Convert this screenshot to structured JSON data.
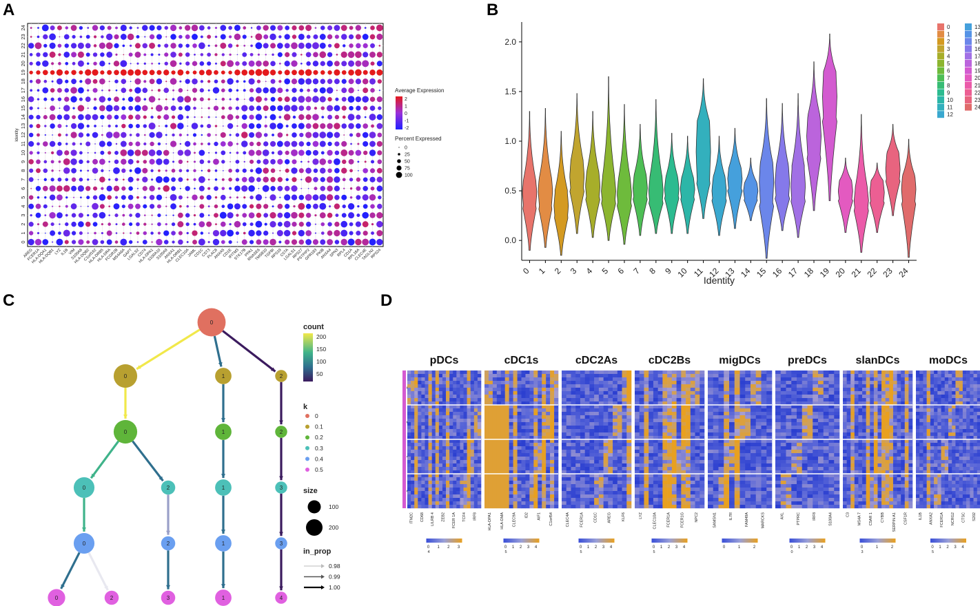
{
  "figure": {
    "panels": [
      {
        "label": "A"
      },
      {
        "label": "B"
      },
      {
        "label": "C"
      },
      {
        "label": "D"
      }
    ]
  },
  "chart_data": [
    {
      "panel": "A",
      "type": "scatter",
      "subtype": "dotplot",
      "ylabel": "Identity",
      "identities": [
        "0",
        "1",
        "2",
        "3",
        "4",
        "5",
        "6",
        "7",
        "8",
        "9",
        "10",
        "11",
        "12",
        "13",
        "14",
        "15",
        "16",
        "17",
        "18",
        "19",
        "20",
        "21",
        "22",
        "23",
        "24"
      ],
      "genes": [
        "AREG",
        "FCER1A",
        "HLA-DQA1",
        "HLA-DQB1",
        "LYZ",
        "IL1B",
        "VIM",
        "S100A8",
        "HLA-DQB2",
        "C1orf162",
        "HLA-DRB5",
        "HLA-DRA",
        "FCGR2B",
        "MS4A6A",
        "GAPT",
        "LGALS2",
        "CD74",
        "HLA-DPA1",
        "S100A10",
        "S100A9",
        "ANXA1",
        "HLA-DRB1",
        "CLEC10A",
        "JAML",
        "CD1C",
        "CST3",
        "PLAC8",
        "ANXA5",
        "CD1E",
        "IFITM3",
        "STK17B",
        "PPA1",
        "RNASE6",
        "TMSB10",
        "TGFBI",
        "RPS19",
        "C5TA",
        "LGALS1",
        "RPS27",
        "PSTPIP2",
        "GPR183",
        "PKIB",
        "ANXA4",
        "SPN3",
        "RPL4",
        "CD1A",
        "RPL18A",
        "CLEC4E",
        "TAGLN2",
        "RPS24"
      ],
      "special_row": {
        "identity": "19",
        "color": "#e41a1c"
      },
      "legend": {
        "color_title": "Average Expression",
        "color_ticks": [
          "2",
          "1",
          "0",
          "-1",
          "-2"
        ],
        "color_range": [
          -2,
          2
        ],
        "size_title": "Percent Expressed",
        "size_ticks": [
          "0",
          "25",
          "50",
          "75",
          "100"
        ],
        "colors": {
          "high": "#e41a1c",
          "mid": "#9b30d9",
          "low": "#2020ff"
        }
      }
    },
    {
      "panel": "B",
      "type": "violin",
      "xlabel": "Identity",
      "categories": [
        "0",
        "1",
        "2",
        "3",
        "4",
        "5",
        "6",
        "7",
        "8",
        "9",
        "10",
        "11",
        "12",
        "13",
        "14",
        "15",
        "16",
        "17",
        "18",
        "19",
        "20",
        "21",
        "22",
        "23",
        "24"
      ],
      "ylim": [
        -0.2,
        2.2
      ],
      "yticks": [
        "0.0",
        "0.5",
        "1.0",
        "1.5",
        "2.0"
      ],
      "violins": [
        {
          "min": -0.1,
          "q1": 0.35,
          "median": 0.48,
          "q3": 0.6,
          "max": 1.3
        },
        {
          "min": -0.07,
          "q1": 0.35,
          "median": 0.5,
          "q3": 0.62,
          "max": 1.33
        },
        {
          "min": -0.15,
          "q1": 0.25,
          "median": 0.35,
          "q3": 0.5,
          "max": 1.1
        },
        {
          "min": 0.07,
          "q1": 0.5,
          "median": 0.65,
          "q3": 0.8,
          "max": 1.48
        },
        {
          "min": 0.03,
          "q1": 0.42,
          "median": 0.55,
          "q3": 0.68,
          "max": 1.3
        },
        {
          "min": 0.0,
          "q1": 0.38,
          "median": 0.5,
          "q3": 0.62,
          "max": 1.65
        },
        {
          "min": -0.04,
          "q1": 0.35,
          "median": 0.47,
          "q3": 0.6,
          "max": 1.37
        },
        {
          "min": 0.05,
          "q1": 0.42,
          "median": 0.53,
          "q3": 0.65,
          "max": 1.17
        },
        {
          "min": 0.07,
          "q1": 0.38,
          "median": 0.5,
          "q3": 0.63,
          "max": 1.42
        },
        {
          "min": 0.07,
          "q1": 0.43,
          "median": 0.52,
          "q3": 0.63,
          "max": 1.08
        },
        {
          "min": 0.07,
          "q1": 0.43,
          "median": 0.52,
          "q3": 0.62,
          "max": 1.05
        },
        {
          "min": 0.22,
          "q1": 0.6,
          "median": 0.9,
          "q3": 1.2,
          "max": 1.63
        },
        {
          "min": 0.05,
          "q1": 0.4,
          "median": 0.5,
          "q3": 0.63,
          "max": 1.05
        },
        {
          "min": 0.12,
          "q1": 0.5,
          "median": 0.62,
          "q3": 0.73,
          "max": 1.13
        },
        {
          "min": 0.2,
          "q1": 0.42,
          "median": 0.5,
          "q3": 0.58,
          "max": 0.83
        },
        {
          "min": -0.18,
          "q1": 0.35,
          "median": 0.6,
          "q3": 0.78,
          "max": 1.43
        },
        {
          "min": 0.1,
          "q1": 0.42,
          "median": 0.58,
          "q3": 0.75,
          "max": 1.38
        },
        {
          "min": 0.03,
          "q1": 0.4,
          "median": 0.55,
          "q3": 0.75,
          "max": 1.48
        },
        {
          "min": 0.3,
          "q1": 0.85,
          "median": 1.05,
          "q3": 1.25,
          "max": 1.8
        },
        {
          "min": 0.4,
          "q1": 1.2,
          "median": 1.45,
          "q3": 1.7,
          "max": 2.08
        },
        {
          "min": 0.08,
          "q1": 0.4,
          "median": 0.5,
          "q3": 0.6,
          "max": 0.83
        },
        {
          "min": -0.12,
          "q1": 0.3,
          "median": 0.4,
          "q3": 0.52,
          "max": 1.27
        },
        {
          "min": 0.08,
          "q1": 0.38,
          "median": 0.48,
          "q3": 0.6,
          "max": 0.78
        },
        {
          "min": 0.25,
          "q1": 0.6,
          "median": 0.72,
          "q3": 0.88,
          "max": 1.17
        },
        {
          "min": -0.17,
          "q1": 0.38,
          "median": 0.52,
          "q3": 0.65,
          "max": 1.02
        }
      ],
      "colors": [
        "#e8746b",
        "#e28c44",
        "#d49a21",
        "#c1a52f",
        "#a7ae2a",
        "#8cb52f",
        "#6ebb3c",
        "#4dbe55",
        "#37bc74",
        "#2cbb90",
        "#2cb6a8",
        "#33b0bd",
        "#3aa8cf",
        "#45a0dc",
        "#5593e6",
        "#6b86ea",
        "#8579ea",
        "#a170e5",
        "#bb64dc",
        "#d35bd0",
        "#e35ac0",
        "#eb5ba9",
        "#ec5f93",
        "#e8647f",
        "#e06b6b"
      ],
      "legend": [
        "0",
        "1",
        "2",
        "3",
        "4",
        "5",
        "6",
        "7",
        "8",
        "9",
        "10",
        "11",
        "12",
        "13",
        "14",
        "15",
        "16",
        "17",
        "18",
        "19",
        "20",
        "21",
        "22",
        "23",
        "24"
      ]
    },
    {
      "panel": "C",
      "type": "tree",
      "subtype": "clustree",
      "nodes": [
        {
          "id": "r0",
          "label": "0",
          "k": "0",
          "size": 230
        },
        {
          "id": "a0",
          "label": "0",
          "k": "0.1",
          "size": 150
        },
        {
          "id": "a1",
          "label": "1",
          "k": "0.1",
          "size": 60
        },
        {
          "id": "a2",
          "label": "2",
          "k": "0.1",
          "size": 25
        },
        {
          "id": "b0",
          "label": "0",
          "k": "0.2",
          "size": 150
        },
        {
          "id": "b1",
          "label": "1",
          "k": "0.2",
          "size": 60
        },
        {
          "id": "b2",
          "label": "2",
          "k": "0.2",
          "size": 25
        },
        {
          "id": "c0",
          "label": "0",
          "k": "0.3",
          "size": 110
        },
        {
          "id": "c2",
          "label": "2",
          "k": "0.3",
          "size": 40
        },
        {
          "id": "c1",
          "label": "1",
          "k": "0.3",
          "size": 60
        },
        {
          "id": "c3",
          "label": "3",
          "k": "0.3",
          "size": 25
        },
        {
          "id": "d0",
          "label": "0",
          "k": "0.4",
          "size": 110
        },
        {
          "id": "d2",
          "label": "2",
          "k": "0.4",
          "size": 40
        },
        {
          "id": "d1",
          "label": "1",
          "k": "0.4",
          "size": 60
        },
        {
          "id": "d3",
          "label": "3",
          "k": "0.4",
          "size": 25
        },
        {
          "id": "e0",
          "label": "0",
          "k": "0.5",
          "size": 70
        },
        {
          "id": "e2",
          "label": "2",
          "k": "0.5",
          "size": 40
        },
        {
          "id": "e3",
          "label": "3",
          "k": "0.5",
          "size": 40
        },
        {
          "id": "e1",
          "label": "1",
          "k": "0.5",
          "size": 60
        },
        {
          "id": "e4",
          "label": "4",
          "k": "0.5",
          "size": 25
        }
      ],
      "edges": [
        {
          "from": "r0",
          "to": "a0",
          "count": 200,
          "in_prop": 1.0
        },
        {
          "from": "r0",
          "to": "a1",
          "count": 100,
          "in_prop": 1.0
        },
        {
          "from": "r0",
          "to": "a2",
          "count": 40,
          "in_prop": 1.0
        },
        {
          "from": "a0",
          "to": "b0",
          "count": 200,
          "in_prop": 0.99
        },
        {
          "from": "a1",
          "to": "b1",
          "count": 100,
          "in_prop": 1.0
        },
        {
          "from": "a2",
          "to": "b2",
          "count": 40,
          "in_prop": 1.0
        },
        {
          "from": "b0",
          "to": "c0",
          "count": 150,
          "in_prop": 1.0
        },
        {
          "from": "b0",
          "to": "c2",
          "count": 100,
          "in_prop": 1.0
        },
        {
          "from": "b1",
          "to": "c1",
          "count": 100,
          "in_prop": 1.0
        },
        {
          "from": "b2",
          "to": "c3",
          "count": 40,
          "in_prop": 1.0
        },
        {
          "from": "c0",
          "to": "d0",
          "count": 150,
          "in_prop": 0.99
        },
        {
          "from": "c2",
          "to": "d2",
          "count": 120,
          "in_prop": 0.98
        },
        {
          "from": "c1",
          "to": "d1",
          "count": 100,
          "in_prop": 1.0
        },
        {
          "from": "c3",
          "to": "d3",
          "count": 40,
          "in_prop": 1.0
        },
        {
          "from": "d0",
          "to": "e0",
          "count": 100,
          "in_prop": 1.0
        },
        {
          "from": "d0",
          "to": "e2",
          "count": 200,
          "in_prop": 0.98
        },
        {
          "from": "d2",
          "to": "e3",
          "count": 100,
          "in_prop": 1.0
        },
        {
          "from": "d1",
          "to": "e1",
          "count": 100,
          "in_prop": 1.0
        },
        {
          "from": "d3",
          "to": "e4",
          "count": 40,
          "in_prop": 1.0
        }
      ],
      "legend": {
        "count_title": "count",
        "count_ticks": [
          "200",
          "150",
          "100",
          "50"
        ],
        "k_title": "k",
        "k_levels": [
          "0",
          "0.1",
          "0.2",
          "0.3",
          "0.4",
          "0.5"
        ],
        "k_colors": [
          "#e07060",
          "#b8a030",
          "#5fb53a",
          "#4cc0b8",
          "#6a9ff0",
          "#e060e0"
        ],
        "size_title": "size",
        "size_ticks": [
          "100",
          "200"
        ],
        "in_prop_title": "in_prop",
        "in_prop_ticks": [
          "0.98",
          "0.99",
          "1.00"
        ]
      }
    },
    {
      "panel": "D",
      "type": "heatmap",
      "groups": [
        {
          "name": "pDCs",
          "genes": [
            "ITM2C",
            "CD68",
            "LILRB 4",
            "ZEB2",
            "FCER 1A",
            "TCF4",
            "IRF8"
          ],
          "scale": [
            "0",
            "1",
            "2",
            "3"
          ],
          "scale_min": "4"
        },
        {
          "name": "cDC1s",
          "genes": [
            "HLA-DPA1",
            "HLA-DMA",
            "CLEC9A",
            "ID2",
            "AIF1",
            "C1orf54"
          ],
          "scale": [
            "0",
            "1",
            "2",
            "3",
            "4"
          ],
          "scale_min": "5"
        },
        {
          "name": "cDC2As",
          "genes": [
            "CLEC4A",
            "FCER1A",
            "CD1C",
            "AREG",
            "KLF6"
          ],
          "scale": [
            "0",
            "1",
            "2",
            "3",
            "4"
          ],
          "scale_min": "5"
        },
        {
          "name": "cDC2Bs",
          "genes": [
            "LYZ",
            "CLEC10A",
            "FCER1A",
            "FCER1G",
            "NPC2"
          ],
          "scale": [
            "0",
            "1",
            "2",
            "3",
            "4"
          ],
          "scale_min": "5"
        },
        {
          "name": "migDCs",
          "genes": [
            "SAMSN1",
            "IL7R",
            "FAM49A",
            "MARCKS"
          ],
          "scale": [
            "0",
            "1",
            "2"
          ],
          "scale_min": ""
        },
        {
          "name": "preDCs",
          "genes": [
            "AXL",
            "PTPRC",
            "IRF8",
            "S100A4"
          ],
          "scale": [
            "0",
            "1",
            "2",
            "3",
            "4"
          ],
          "scale_min": "0"
        },
        {
          "name": "slanDCs",
          "genes": [
            "C3",
            "MS4A 7",
            "C5AR 1",
            "CYBB",
            "SERPIN A1",
            "CSF1R"
          ],
          "scale": [
            "0",
            "1",
            "2"
          ],
          "scale_min": "3"
        },
        {
          "name": "moDCs",
          "genes": [
            "IL1B",
            "ANXA2",
            "FCER1A",
            "NCRG2",
            "CTSC",
            "S202"
          ],
          "scale": [
            "0",
            "1",
            "2",
            "3",
            "4"
          ],
          "scale_min": "5"
        }
      ],
      "row_blocks": [
        "3",
        "2",
        "1",
        "0"
      ],
      "colors": {
        "low": "#3a4fd8",
        "mid": "#8c94d8",
        "high": "#e8a020"
      }
    }
  ]
}
